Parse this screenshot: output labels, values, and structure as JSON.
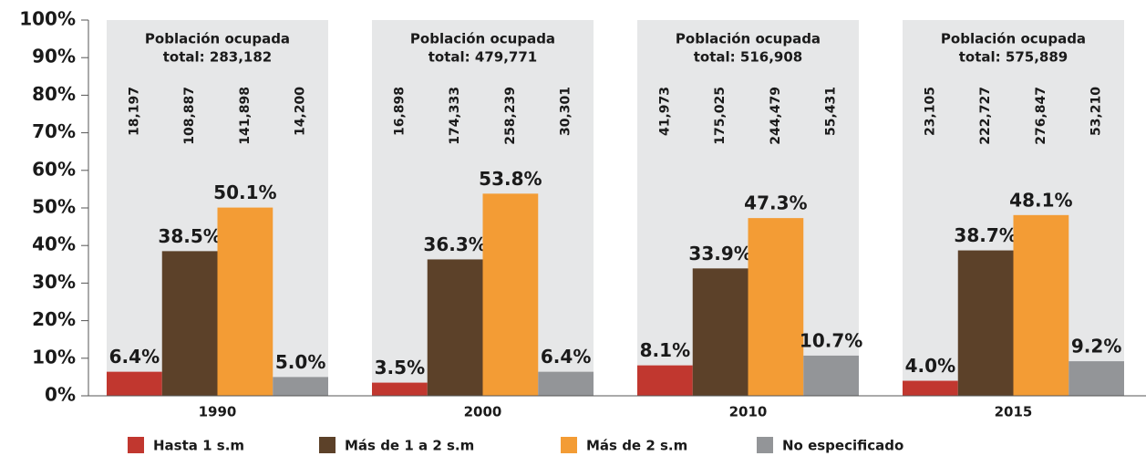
{
  "chart_data": {
    "type": "bar",
    "categories": [
      "1990",
      "2000",
      "2010",
      "2015"
    ],
    "group_titles": [
      {
        "line1": "Población ocupada",
        "line2": "total: 283,182"
      },
      {
        "line1": "Población ocupada",
        "line2": "total: 479,771"
      },
      {
        "line1": "Población ocupada",
        "line2": "total: 516,908"
      },
      {
        "line1": "Población ocupada",
        "line2": "total: 575,889"
      }
    ],
    "series": [
      {
        "name": "Hasta 1 s.m",
        "color": "#c1372f",
        "values": [
          6.4,
          3.5,
          8.1,
          4.0
        ],
        "value_labels": [
          "6.4%",
          "3.5%",
          "8.1%",
          "4.0%"
        ],
        "counts": [
          18197,
          16898,
          41973,
          23105
        ],
        "count_labels": [
          "18,197",
          "16,898",
          "41,973",
          "23,105"
        ]
      },
      {
        "name": "Más de 1 a 2 s.m",
        "color": "#5c4129",
        "values": [
          38.5,
          36.3,
          33.9,
          38.7
        ],
        "value_labels": [
          "38.5%",
          "36.3%",
          "33.9%",
          "38.7%"
        ],
        "counts": [
          108887,
          174333,
          175025,
          222727
        ],
        "count_labels": [
          "108,887",
          "174,333",
          "175,025",
          "222,727"
        ]
      },
      {
        "name": "Más de 2 s.m",
        "color": "#f39c35",
        "values": [
          50.1,
          53.8,
          47.3,
          48.1
        ],
        "value_labels": [
          "50.1%",
          "53.8%",
          "47.3%",
          "48.1%"
        ],
        "counts": [
          141898,
          258239,
          244479,
          276847
        ],
        "count_labels": [
          "141,898",
          "258,239",
          "244,479",
          "276,847"
        ]
      },
      {
        "name": "No especificado",
        "color": "#939598",
        "values": [
          5.0,
          6.4,
          10.7,
          9.2
        ],
        "value_labels": [
          "5.0%",
          "6.4%",
          "10.7%",
          "9.2%"
        ],
        "counts": [
          14200,
          30301,
          55431,
          53210
        ],
        "count_labels": [
          "14,200",
          "30,301",
          "55,431",
          "53,210"
        ]
      }
    ],
    "ylim": [
      0,
      100
    ],
    "yticks": [
      {
        "value": 0,
        "label": "0%"
      },
      {
        "value": 10,
        "label": "10%"
      },
      {
        "value": 20,
        "label": "20%"
      },
      {
        "value": 30,
        "label": "30%"
      },
      {
        "value": 40,
        "label": "40%"
      },
      {
        "value": 50,
        "label": "50%"
      },
      {
        "value": 60,
        "label": "60%"
      },
      {
        "value": 70,
        "label": "70%"
      },
      {
        "value": 80,
        "label": "80%"
      },
      {
        "value": 90,
        "label": "90%"
      },
      {
        "value": 100,
        "label": "100%"
      }
    ],
    "legend": "bottom"
  }
}
